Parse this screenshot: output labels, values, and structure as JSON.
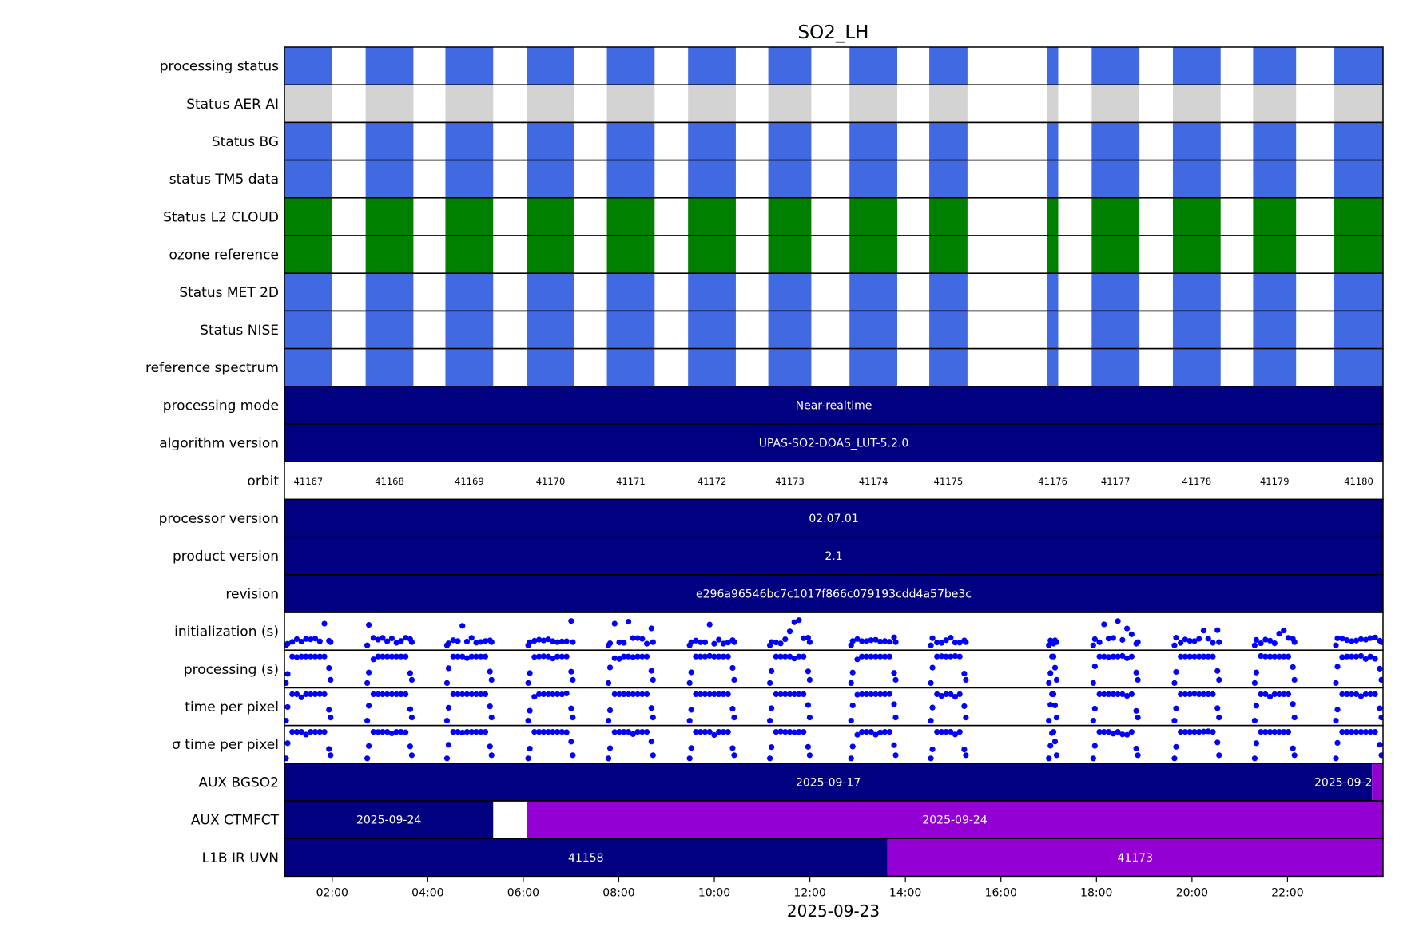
{
  "chart_data": {
    "type": "timeline",
    "title": "SO2_LH",
    "xlabel": "2025-09-23",
    "x_ticks": [
      "02:00",
      "04:00",
      "06:00",
      "08:00",
      "10:00",
      "12:00",
      "14:00",
      "16:00",
      "18:00",
      "20:00",
      "22:00"
    ],
    "x_tick_hours": [
      2,
      4,
      6,
      8,
      10,
      12,
      14,
      16,
      18,
      20,
      22
    ],
    "x_range_hours": [
      1.0,
      24.0
    ],
    "colors": {
      "blue": "#4169e1",
      "grey": "#d3d3d3",
      "green": "#008000",
      "navy": "#000080",
      "purple": "#9400d3",
      "dots": "#0000ff",
      "white_text": "#ffffff"
    },
    "granules": [
      {
        "orbit": "41167",
        "start": 1.0,
        "end": 2.0
      },
      {
        "orbit": "41168",
        "start": 2.7,
        "end": 3.7
      },
      {
        "orbit": "41169",
        "start": 4.37,
        "end": 5.37
      },
      {
        "orbit": "41170",
        "start": 6.07,
        "end": 7.07
      },
      {
        "orbit": "41171",
        "start": 7.75,
        "end": 8.75
      },
      {
        "orbit": "41172",
        "start": 9.45,
        "end": 10.45
      },
      {
        "orbit": "41173",
        "start": 11.13,
        "end": 12.03
      },
      {
        "orbit": "41174",
        "start": 12.83,
        "end": 13.83
      },
      {
        "orbit": "41175",
        "start": 14.5,
        "end": 15.3
      },
      {
        "orbit": "41176",
        "start": 16.97,
        "end": 17.2
      },
      {
        "orbit": "41177",
        "start": 17.9,
        "end": 18.9
      },
      {
        "orbit": "41178",
        "start": 19.6,
        "end": 20.6
      },
      {
        "orbit": "41179",
        "start": 21.28,
        "end": 22.18
      },
      {
        "orbit": "41180",
        "start": 22.98,
        "end": 24.0
      }
    ],
    "rows": [
      {
        "label": "processing status",
        "kind": "granule",
        "color": "blue"
      },
      {
        "label": "Status AER AI",
        "kind": "granule",
        "color": "grey"
      },
      {
        "label": "Status BG",
        "kind": "granule",
        "color": "blue"
      },
      {
        "label": "status TM5 data",
        "kind": "granule",
        "color": "blue"
      },
      {
        "label": "Status L2  CLOUD",
        "kind": "granule",
        "color": "green"
      },
      {
        "label": "ozone reference",
        "kind": "granule",
        "color": "green"
      },
      {
        "label": "Status MET 2D",
        "kind": "granule",
        "color": "blue"
      },
      {
        "label": "Status NISE",
        "kind": "granule",
        "color": "blue"
      },
      {
        "label": "reference spectrum",
        "kind": "granule",
        "color": "blue"
      },
      {
        "label": "processing mode",
        "kind": "band",
        "segments": [
          {
            "start": 1.0,
            "end": 24.0,
            "color": "navy",
            "text": "Near-realtime"
          }
        ]
      },
      {
        "label": "algorithm version",
        "kind": "band",
        "segments": [
          {
            "start": 1.0,
            "end": 24.0,
            "color": "navy",
            "text": "UPAS-SO2-DOAS_LUT-5.2.0"
          }
        ]
      },
      {
        "label": "orbit",
        "kind": "orbit"
      },
      {
        "label": "processor version",
        "kind": "band",
        "segments": [
          {
            "start": 1.0,
            "end": 24.0,
            "color": "navy",
            "text": "02.07.01"
          }
        ]
      },
      {
        "label": "product version",
        "kind": "band",
        "segments": [
          {
            "start": 1.0,
            "end": 24.0,
            "color": "navy",
            "text": "2.1"
          }
        ]
      },
      {
        "label": "revision",
        "kind": "band",
        "segments": [
          {
            "start": 1.0,
            "end": 24.0,
            "color": "navy",
            "text": "e296a96546bc7c1017f866c079193cdd4a57be3c"
          }
        ]
      },
      {
        "label": "initialization (s)",
        "kind": "scatter"
      },
      {
        "label": "processing (s)",
        "kind": "scatter"
      },
      {
        "label": "time per pixel",
        "kind": "scatter"
      },
      {
        "label": "σ time per pixel",
        "kind": "scatter"
      },
      {
        "label": "AUX BGSO2",
        "kind": "band",
        "segments": [
          {
            "start": 1.0,
            "end": 23.77,
            "color": "navy",
            "text": "2025-09-17"
          },
          {
            "start": 23.77,
            "end": 24.0,
            "color": "purple",
            "text": "2025-09-2"
          }
        ]
      },
      {
        "label": "AUX CTMFCT",
        "kind": "band",
        "segments": [
          {
            "start": 1.0,
            "end": 5.37,
            "color": "navy",
            "text": "2025-09-24"
          },
          {
            "start": 6.07,
            "end": 24.0,
            "color": "purple",
            "text": "2025-09-24"
          }
        ]
      },
      {
        "label": "L1B IR UVN",
        "kind": "band",
        "segments": [
          {
            "start": 1.0,
            "end": 13.62,
            "color": "navy",
            "text": "41158"
          },
          {
            "start": 13.62,
            "end": 24.0,
            "color": "purple",
            "text": "41173"
          }
        ]
      }
    ]
  }
}
